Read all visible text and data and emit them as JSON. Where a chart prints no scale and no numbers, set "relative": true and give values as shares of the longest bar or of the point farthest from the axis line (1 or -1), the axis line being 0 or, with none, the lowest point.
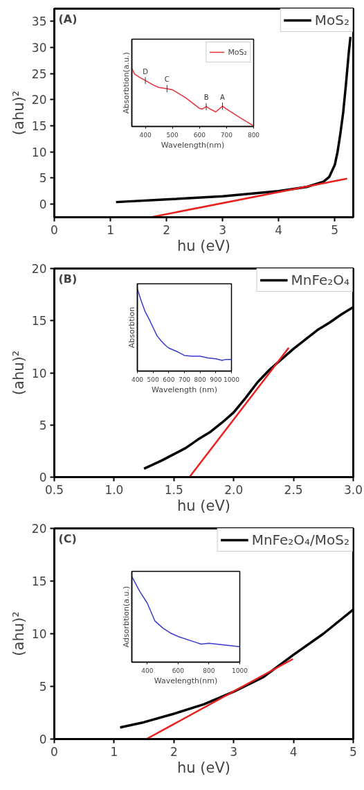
{
  "chart_data": [
    {
      "type": "line",
      "xlabel": "hu (eV)",
      "ylabel": "(ahu)²",
      "xlim": [
        0,
        5.33
      ],
      "ylim": [
        -2.5,
        37.4
      ],
      "xticks": [
        0,
        1,
        2,
        3,
        4,
        5
      ],
      "yticks": [
        0,
        5,
        10,
        15,
        20,
        25,
        30,
        35
      ],
      "legend": "top right",
      "annotations": [
        "(A)"
      ],
      "series": [
        {
          "name": "MoS₂",
          "color": "#000000",
          "x": [
            1.1,
            2,
            3,
            4,
            4.5,
            4.8,
            4.9,
            5.0,
            5.05,
            5.1,
            5.15,
            5.2,
            5.25,
            5.28
          ],
          "values": [
            0.4,
            0.9,
            1.5,
            2.5,
            3.3,
            4.3,
            5.2,
            7.5,
            10,
            13.5,
            17.5,
            23,
            29,
            32
          ]
        },
        {
          "color": "#e8201e",
          "x": [
            1.72,
            5.22
          ],
          "values": [
            -2.5,
            4.9
          ]
        }
      ]
    },
    {
      "type": "line",
      "relative": true,
      "xlabel": "Wavelength(nm)",
      "ylabel": "Absorbtion(a.u.)",
      "xlim": [
        350,
        800
      ],
      "xticks": [
        400,
        500,
        600,
        700,
        800
      ],
      "legend": "top right",
      "annotations": [
        {
          "text": "D",
          "x": 400,
          "y": 0.79
        },
        {
          "text": "C",
          "x": 480,
          "y": 0.65
        },
        {
          "text": "B",
          "x": 625,
          "y": 0.34
        },
        {
          "text": "A",
          "x": 685,
          "y": 0.35
        }
      ],
      "series": [
        {
          "name": "MoS₂",
          "color": "#e8303a",
          "x": [
            350,
            360,
            380,
            400,
            430,
            450,
            480,
            500,
            550,
            600,
            610,
            625,
            640,
            660,
            675,
            685,
            700,
            750,
            800
          ],
          "values": [
            1.0,
            0.9,
            0.84,
            0.79,
            0.71,
            0.67,
            0.65,
            0.63,
            0.49,
            0.31,
            0.3,
            0.34,
            0.3,
            0.25,
            0.31,
            0.35,
            0.3,
            0.15,
            0.01
          ]
        }
      ]
    },
    {
      "type": "line",
      "xlabel": "hu (eV)",
      "ylabel": "(ahu)²",
      "xlim": [
        0.5,
        3.0
      ],
      "ylim": [
        0,
        20
      ],
      "xticks": [
        {
          "value": 0.5,
          "label": "0.5"
        },
        {
          "value": 1.0,
          "label": "1.0"
        },
        {
          "value": 1.5,
          "label": "1.5"
        },
        {
          "value": 2.0,
          "label": "2.0"
        },
        {
          "value": 2.5,
          "label": "2.5"
        },
        {
          "value": 3.0,
          "label": "3.0"
        }
      ],
      "yticks": [
        0,
        5,
        10,
        15,
        20
      ],
      "legend": "top right",
      "annotations": [
        "(B)"
      ],
      "series": [
        {
          "name": "MnFe₂O₄",
          "color": "#000000",
          "x": [
            1.25,
            1.4,
            1.5,
            1.6,
            1.7,
            1.8,
            1.9,
            2.0,
            2.1,
            2.2,
            2.3,
            2.4,
            2.5,
            2.6,
            2.7,
            2.8,
            2.9,
            3.0
          ],
          "values": [
            0.8,
            1.6,
            2.2,
            2.8,
            3.6,
            4.3,
            5.2,
            6.2,
            7.6,
            9.1,
            10.3,
            11.3,
            12.3,
            13.2,
            14.1,
            14.8,
            15.6,
            16.3
          ]
        },
        {
          "color": "#e8201e",
          "x": [
            1.63,
            2.46
          ],
          "values": [
            0,
            12.4
          ]
        }
      ]
    },
    {
      "type": "line",
      "relative": true,
      "xlabel": "Wavelength (nm)",
      "ylabel": "Absorbtion",
      "xlim": [
        400,
        1000
      ],
      "xticks": [
        400,
        500,
        600,
        700,
        800,
        900,
        1000
      ],
      "series": [
        {
          "color": "#3a3ad0",
          "x": [
            400,
            425,
            450,
            475,
            500,
            525,
            550,
            575,
            600,
            650,
            700,
            750,
            800,
            850,
            900,
            940,
            960,
            1000
          ],
          "values": [
            1.0,
            0.85,
            0.72,
            0.63,
            0.53,
            0.43,
            0.37,
            0.32,
            0.28,
            0.24,
            0.19,
            0.18,
            0.18,
            0.16,
            0.15,
            0.13,
            0.14,
            0.14
          ]
        }
      ]
    },
    {
      "type": "line",
      "xlabel": "hu (eV)",
      "ylabel": "(ahu)²",
      "xlim": [
        0,
        5
      ],
      "ylim": [
        0,
        20
      ],
      "xticks": [
        0,
        1,
        2,
        3,
        4,
        5
      ],
      "yticks": [
        0,
        5,
        10,
        15,
        20
      ],
      "legend": "top right",
      "annotations": [
        "(C)"
      ],
      "series": [
        {
          "name": "MnFe₂O₄/MoS₂",
          "color": "#000000",
          "x": [
            1.1,
            1.5,
            2,
            2.5,
            3,
            3.5,
            4,
            4.5,
            5
          ],
          "values": [
            1.1,
            1.6,
            2.4,
            3.3,
            4.5,
            5.9,
            8.0,
            10.0,
            12.3
          ]
        },
        {
          "color": "#e8201e",
          "x": [
            1.54,
            3.99
          ],
          "values": [
            0,
            7.6
          ]
        }
      ]
    },
    {
      "type": "line",
      "relative": true,
      "xlabel": "Wavelength(nm)",
      "ylabel": "Adsorbtion(a.u.)",
      "xlim": [
        300,
        1000
      ],
      "xticks": [
        400,
        600,
        800,
        1000
      ],
      "series": [
        {
          "color": "#3a3ad0",
          "x": [
            300,
            350,
            400,
            450,
            500,
            550,
            600,
            700,
            750,
            800,
            900,
            1000
          ],
          "values": [
            1.0,
            0.83,
            0.69,
            0.48,
            0.4,
            0.34,
            0.3,
            0.24,
            0.21,
            0.22,
            0.2,
            0.18
          ]
        }
      ]
    }
  ]
}
